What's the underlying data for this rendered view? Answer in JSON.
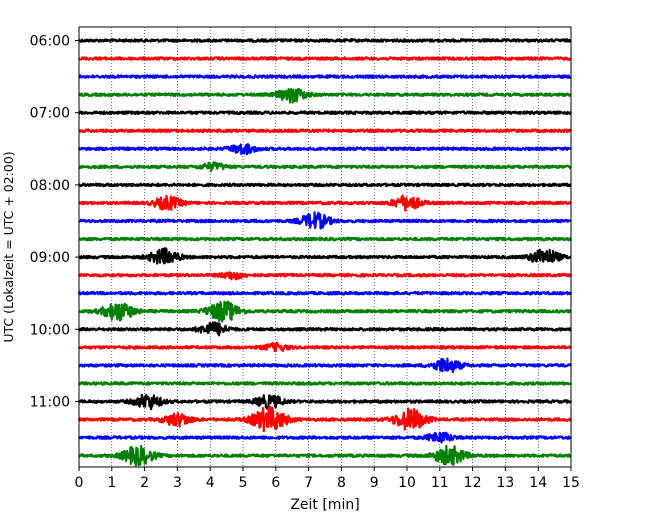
{
  "chart_data": {
    "type": "line",
    "subtype": "seismogram-helicorder",
    "xlabel": "Zeit  [min]",
    "ylabel": "UTC (Lokalzeit = UTC + 02:00)",
    "xlim": [
      0,
      15
    ],
    "x_ticks": [
      "0",
      "1",
      "2",
      "3",
      "4",
      "5",
      "6",
      "7",
      "8",
      "9",
      "10",
      "11",
      "12",
      "13",
      "14",
      "15"
    ],
    "y_ticks": [
      "06:00",
      "07:00",
      "08:00",
      "09:00",
      "10:00",
      "11:00"
    ],
    "grid": "vertical dotted at each minute",
    "line_interval_min": 15,
    "line_colors": [
      "#000000",
      "#ff0000",
      "#0000ff",
      "#008000"
    ],
    "traces": [
      {
        "start": "06:00",
        "events": []
      },
      {
        "start": "06:15",
        "events": []
      },
      {
        "start": "06:30",
        "events": []
      },
      {
        "start": "06:45",
        "events": [
          {
            "t": 6.5,
            "amp": 0.5
          }
        ]
      },
      {
        "start": "07:00",
        "events": []
      },
      {
        "start": "07:15",
        "events": []
      },
      {
        "start": "07:30",
        "events": [
          {
            "t": 5.0,
            "amp": 0.35
          }
        ]
      },
      {
        "start": "07:45",
        "events": [
          {
            "t": 4.1,
            "amp": 0.25
          }
        ]
      },
      {
        "start": "08:00",
        "events": []
      },
      {
        "start": "08:15",
        "events": [
          {
            "t": 2.7,
            "amp": 0.45
          },
          {
            "t": 10.0,
            "amp": 0.5
          }
        ]
      },
      {
        "start": "08:30",
        "events": [
          {
            "t": 7.2,
            "amp": 0.55
          }
        ]
      },
      {
        "start": "08:45",
        "events": []
      },
      {
        "start": "09:00",
        "events": [
          {
            "t": 2.6,
            "amp": 0.55
          },
          {
            "t": 14.2,
            "amp": 0.55
          }
        ]
      },
      {
        "start": "09:15",
        "events": [
          {
            "t": 4.7,
            "amp": 0.25
          }
        ]
      },
      {
        "start": "09:30",
        "events": []
      },
      {
        "start": "09:45",
        "events": [
          {
            "t": 1.2,
            "amp": 0.65
          },
          {
            "t": 4.4,
            "amp": 0.7
          }
        ]
      },
      {
        "start": "10:00",
        "events": [
          {
            "t": 4.1,
            "amp": 0.45
          }
        ]
      },
      {
        "start": "10:15",
        "events": [
          {
            "t": 6.0,
            "amp": 0.25
          }
        ]
      },
      {
        "start": "10:30",
        "events": [
          {
            "t": 11.2,
            "amp": 0.5
          }
        ]
      },
      {
        "start": "10:45",
        "events": []
      },
      {
        "start": "11:00",
        "events": [
          {
            "t": 2.1,
            "amp": 0.5
          },
          {
            "t": 5.8,
            "amp": 0.45
          }
        ]
      },
      {
        "start": "11:15",
        "events": [
          {
            "t": 3.0,
            "amp": 0.45
          },
          {
            "t": 5.8,
            "amp": 0.85
          },
          {
            "t": 10.1,
            "amp": 0.75
          }
        ]
      },
      {
        "start": "11:30",
        "events": [
          {
            "t": 11.0,
            "amp": 0.35
          }
        ]
      },
      {
        "start": "11:45",
        "events": [
          {
            "t": 1.8,
            "amp": 0.65
          },
          {
            "t": 11.3,
            "amp": 0.65
          }
        ]
      }
    ]
  }
}
